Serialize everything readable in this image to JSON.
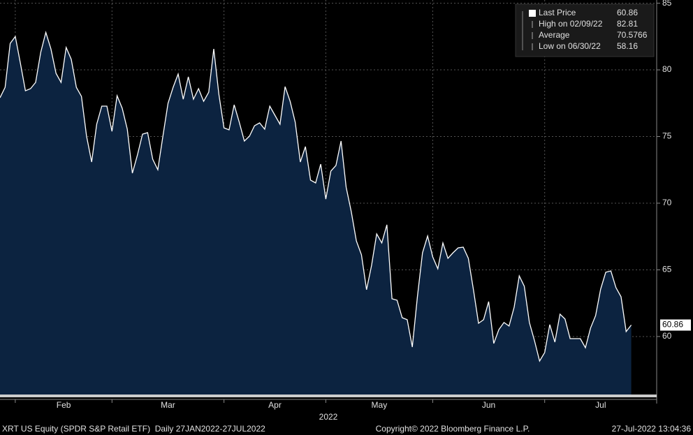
{
  "chart_data": {
    "type": "area",
    "values": [
      77.91,
      78.69,
      81.99,
      82.5,
      80.52,
      78.43,
      78.59,
      79.06,
      81.31,
      82.81,
      81.57,
      79.74,
      79.06,
      81.68,
      80.79,
      78.69,
      78.01,
      75.03,
      73.09,
      75.92,
      77.28,
      77.28,
      75.39,
      78.06,
      77.12,
      75.55,
      72.25,
      73.61,
      75.18,
      75.29,
      73.3,
      72.51,
      75.03,
      77.49,
      78.69,
      79.69,
      77.8,
      79.48,
      77.8,
      78.59,
      77.64,
      78.32,
      81.57,
      78.17,
      75.65,
      75.5,
      77.38,
      76.07,
      74.66,
      75.03,
      75.81,
      76.02,
      75.55,
      77.28,
      76.6,
      75.92,
      78.74,
      77.64,
      76.07,
      73.09,
      74.24,
      71.73,
      71.52,
      72.93,
      70.31,
      72.41,
      72.83,
      74.66,
      71.2,
      69.37,
      67.17,
      66.13,
      63.51,
      65.34,
      67.7,
      67.02,
      68.38,
      62.83,
      62.72,
      61.41,
      61.26,
      59.21,
      62.98,
      66.28,
      67.54,
      65.97,
      65.08,
      67.02,
      65.86,
      66.28,
      66.65,
      66.7,
      65.86,
      63.51,
      60.99,
      61.26,
      62.62,
      59.48,
      60.52,
      61.05,
      60.79,
      62.2,
      64.55,
      63.77,
      61.05,
      59.69,
      58.16,
      58.8,
      60.89,
      59.58,
      61.68,
      61.31,
      59.84,
      59.84,
      59.84,
      59.16,
      60.63,
      61.57,
      63.56,
      64.82,
      64.92,
      63.67,
      62.98,
      60.37,
      60.86
    ],
    "color": "#0c2340",
    "line_color": "#ffffff",
    "xlim": [
      0,
      129
    ],
    "xticks": [
      {
        "value": 3,
        "label": "Feb"
      },
      {
        "value": 22,
        "label": "Mar"
      },
      {
        "value": 44,
        "label": "Apr"
      },
      {
        "value": 64,
        "label": "May"
      },
      {
        "value": 85,
        "label": "Jun"
      },
      {
        "value": 107,
        "label": "Jul"
      }
    ],
    "x_label": "2022",
    "ylim": [
      55.65,
      85.24
    ],
    "yticks": [
      60,
      65,
      70,
      75,
      80,
      85
    ],
    "grid": true,
    "last_price_tag": 60.86,
    "legend": [
      {
        "label": "Last Price",
        "value": 60.86
      },
      {
        "label": "High on 02/09/22",
        "value": 82.81
      },
      {
        "label": "Average",
        "value": 70.5766
      },
      {
        "label": "Low on 06/30/22",
        "value": 58.16
      }
    ],
    "footer_left": "XRT US Equity (SPDR S&P Retail ETF)  Daily 27JAN2022-27JUL2022",
    "footer_center": "Copyright© 2022 Bloomberg Finance L.P.",
    "footer_right": "27-Jul-2022 13:04:36"
  }
}
